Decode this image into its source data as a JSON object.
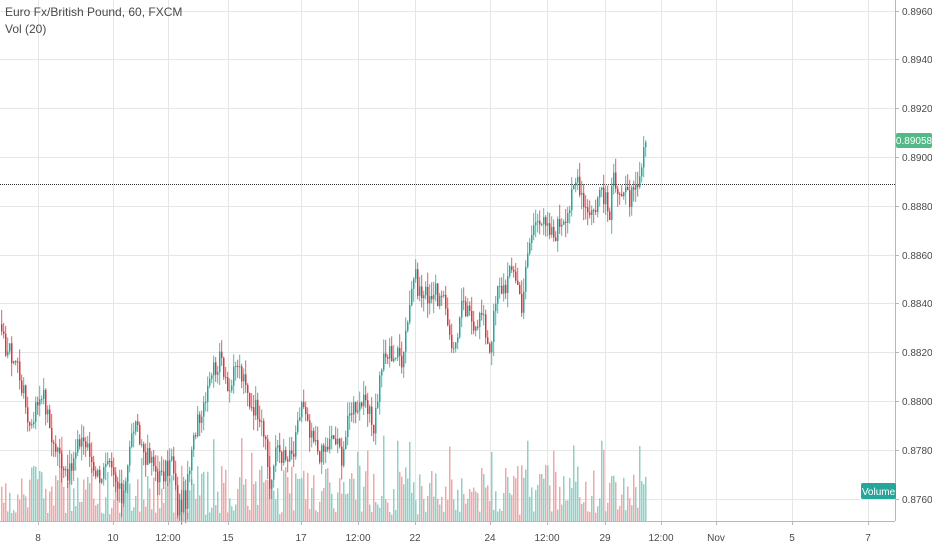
{
  "legend": {
    "symbol": "Euro Fx/British Pound, 60, FXCM",
    "volume_label": "Vol (20)"
  },
  "price_badge": "0.89058",
  "volume_badge": "Volume",
  "colors": {
    "up": "#26a69a",
    "down": "#d9363e",
    "vol_up": "#8fd1c5",
    "vol_down": "#f0a7a7",
    "grid": "#e6e6e6",
    "axis_line": "#b8b8b8",
    "price_badge_bg": "#53b987",
    "volume_badge_bg": "#26a69a",
    "ref_line": "#333333"
  },
  "chart_data": {
    "type": "candlestick",
    "title": "Euro Fx/British Pound, 60, FXCM",
    "y_ticks": [
      "0.89600",
      "0.89400",
      "0.89200",
      "0.89000",
      "0.88800",
      "0.88600",
      "0.88400",
      "0.88200",
      "0.88000",
      "0.87800",
      "0.87600"
    ],
    "ylim": [
      0.8752,
      0.8966
    ],
    "x_ticks": [
      "8",
      "10",
      "12:00",
      "15",
      "17",
      "12:00",
      "22",
      "24",
      "12:00",
      "29",
      "12:00",
      "Nov",
      "5",
      "7"
    ],
    "last_price": 0.89058,
    "reference_price": 0.8889,
    "anchors": [
      {
        "i": 0,
        "p": 0.8825
      },
      {
        "i": 8,
        "p": 0.8815
      },
      {
        "i": 14,
        "p": 0.879
      },
      {
        "i": 20,
        "p": 0.8805
      },
      {
        "i": 26,
        "p": 0.8782
      },
      {
        "i": 34,
        "p": 0.877
      },
      {
        "i": 40,
        "p": 0.8786
      },
      {
        "i": 48,
        "p": 0.877
      },
      {
        "i": 54,
        "p": 0.8772
      },
      {
        "i": 60,
        "p": 0.876
      },
      {
        "i": 66,
        "p": 0.879
      },
      {
        "i": 72,
        "p": 0.8778
      },
      {
        "i": 80,
        "p": 0.8768
      },
      {
        "i": 85,
        "p": 0.8776
      },
      {
        "i": 88,
        "p": 0.8756
      },
      {
        "i": 92,
        "p": 0.876
      },
      {
        "i": 98,
        "p": 0.8795
      },
      {
        "i": 100,
        "p": 0.8796
      },
      {
        "i": 104,
        "p": 0.8812
      },
      {
        "i": 110,
        "p": 0.8817
      },
      {
        "i": 114,
        "p": 0.8805
      },
      {
        "i": 118,
        "p": 0.8815
      },
      {
        "i": 124,
        "p": 0.88
      },
      {
        "i": 130,
        "p": 0.8795
      },
      {
        "i": 134,
        "p": 0.8765
      },
      {
        "i": 138,
        "p": 0.8782
      },
      {
        "i": 142,
        "p": 0.8775
      },
      {
        "i": 146,
        "p": 0.8778
      },
      {
        "i": 150,
        "p": 0.88
      },
      {
        "i": 154,
        "p": 0.8785
      },
      {
        "i": 160,
        "p": 0.8778
      },
      {
        "i": 166,
        "p": 0.8785
      },
      {
        "i": 170,
        "p": 0.8778
      },
      {
        "i": 175,
        "p": 0.8798
      },
      {
        "i": 180,
        "p": 0.88
      },
      {
        "i": 186,
        "p": 0.879
      },
      {
        "i": 190,
        "p": 0.8815
      },
      {
        "i": 194,
        "p": 0.882
      },
      {
        "i": 200,
        "p": 0.8818
      },
      {
        "i": 206,
        "p": 0.8852
      },
      {
        "i": 210,
        "p": 0.8843
      },
      {
        "i": 216,
        "p": 0.8845
      },
      {
        "i": 222,
        "p": 0.8838
      },
      {
        "i": 226,
        "p": 0.882
      },
      {
        "i": 230,
        "p": 0.8838
      },
      {
        "i": 236,
        "p": 0.8833
      },
      {
        "i": 240,
        "p": 0.8835
      },
      {
        "i": 244,
        "p": 0.8822
      },
      {
        "i": 248,
        "p": 0.8845
      },
      {
        "i": 252,
        "p": 0.8848
      },
      {
        "i": 256,
        "p": 0.8855
      },
      {
        "i": 260,
        "p": 0.884
      },
      {
        "i": 264,
        "p": 0.8865
      },
      {
        "i": 268,
        "p": 0.8878
      },
      {
        "i": 272,
        "p": 0.887
      },
      {
        "i": 276,
        "p": 0.8868
      },
      {
        "i": 280,
        "p": 0.8875
      },
      {
        "i": 284,
        "p": 0.888
      },
      {
        "i": 288,
        "p": 0.8892
      },
      {
        "i": 292,
        "p": 0.888
      },
      {
        "i": 296,
        "p": 0.8878
      },
      {
        "i": 300,
        "p": 0.8888
      },
      {
        "i": 304,
        "p": 0.8875
      },
      {
        "i": 306,
        "p": 0.8893
      },
      {
        "i": 310,
        "p": 0.8885
      },
      {
        "i": 314,
        "p": 0.8883
      },
      {
        "i": 318,
        "p": 0.8885
      },
      {
        "i": 322,
        "p": 0.8906
      }
    ]
  }
}
